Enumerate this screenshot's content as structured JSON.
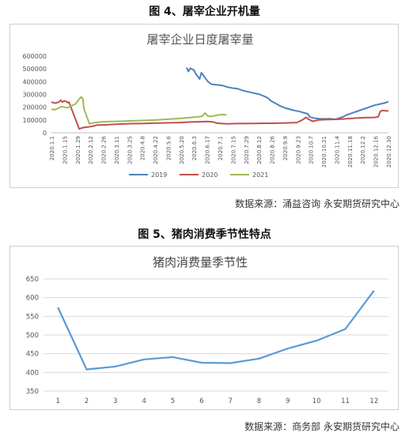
{
  "figure1": {
    "caption": "图 4、屠宰企业开机量",
    "source": "数据来源：涌益咨询  永安期货研究中心"
  },
  "figure2": {
    "caption": "图 5、猪肉消费季节性特点",
    "source": "数据来源：商务部  永安期货研究中心"
  },
  "chart_data": [
    {
      "type": "line",
      "title": "屠宰企业日度屠宰量",
      "xlabel": "",
      "ylabel": "",
      "ylim": [
        0,
        600000
      ],
      "yticks": [
        "600000",
        "500000",
        "400000",
        "300000",
        "200000",
        "100000",
        "0"
      ],
      "x_tick_labels": [
        "2020.1.1",
        "2020.1.15",
        "2020.1.29",
        "2020.2.12",
        "2020.2.26",
        "2020.3.11",
        "2020.3.25",
        "2020.4.8",
        "2020.4.22",
        "2020.5.6",
        "2020.5.20",
        "2020.6.3",
        "2020.6.17",
        "2020.7.1",
        "2020.7.15",
        "2020.7.29",
        "2020.8.12",
        "2020.8.26",
        "2020.9.9",
        "2020.9.23",
        "2020.10.7",
        "2020.10.21",
        "2020.11.4",
        "2020.11.18",
        "2020.12.2",
        "2020.12.16",
        "2020.12.30"
      ],
      "x_range": [
        1,
        365
      ],
      "x_unit": "day of year",
      "legend_position": "bottom",
      "series": [
        {
          "name": "2019",
          "color": "#4f81bd",
          "points": [
            [
              147,
              510000
            ],
            [
              149,
              480000
            ],
            [
              151,
              505000
            ],
            [
              155,
              490000
            ],
            [
              157,
              460000
            ],
            [
              161,
              420000
            ],
            [
              163,
              470000
            ],
            [
              166,
              440000
            ],
            [
              170,
              400000
            ],
            [
              174,
              380000
            ],
            [
              180,
              375000
            ],
            [
              186,
              370000
            ],
            [
              190,
              360000
            ],
            [
              196,
              350000
            ],
            [
              202,
              345000
            ],
            [
              208,
              330000
            ],
            [
              214,
              320000
            ],
            [
              220,
              310000
            ],
            [
              226,
              300000
            ],
            [
              231,
              285000
            ],
            [
              235,
              270000
            ],
            [
              238,
              250000
            ],
            [
              243,
              230000
            ],
            [
              248,
              210000
            ],
            [
              253,
              195000
            ],
            [
              258,
              185000
            ],
            [
              263,
              175000
            ],
            [
              268,
              168000
            ],
            [
              273,
              158000
            ],
            [
              278,
              148000
            ],
            [
              280,
              125000
            ],
            [
              284,
              115000
            ],
            [
              290,
              110000
            ],
            [
              296,
              108000
            ],
            [
              302,
              110000
            ],
            [
              308,
              105000
            ],
            [
              312,
              115000
            ],
            [
              316,
              125000
            ],
            [
              320,
              140000
            ],
            [
              326,
              155000
            ],
            [
              332,
              170000
            ],
            [
              338,
              185000
            ],
            [
              344,
              200000
            ],
            [
              350,
              215000
            ],
            [
              356,
              225000
            ],
            [
              362,
              235000
            ],
            [
              365,
              245000
            ]
          ]
        },
        {
          "name": "2020",
          "color": "#c0504d",
          "points": [
            [
              1,
              240000
            ],
            [
              5,
              232000
            ],
            [
              9,
              240000
            ],
            [
              11,
              255000
            ],
            [
              13,
              240000
            ],
            [
              15,
              250000
            ],
            [
              17,
              245000
            ],
            [
              19,
              235000
            ],
            [
              20,
              240000
            ],
            [
              31,
              30000
            ],
            [
              35,
              40000
            ],
            [
              40,
              45000
            ],
            [
              45,
              50000
            ],
            [
              50,
              60000
            ],
            [
              60,
              62000
            ],
            [
              70,
              66000
            ],
            [
              80,
              70000
            ],
            [
              90,
              72000
            ],
            [
              100,
              73000
            ],
            [
              110,
              75000
            ],
            [
              120,
              77000
            ],
            [
              130,
              78000
            ],
            [
              140,
              80000
            ],
            [
              150,
              84000
            ],
            [
              160,
              86000
            ],
            [
              170,
              88000
            ],
            [
              176,
              84000
            ],
            [
              180,
              75000
            ],
            [
              186,
              72000
            ],
            [
              192,
              70000
            ],
            [
              200,
              72000
            ],
            [
              210,
              73000
            ],
            [
              220,
              73000
            ],
            [
              230,
              74000
            ],
            [
              240,
              74000
            ],
            [
              250,
              76000
            ],
            [
              260,
              78000
            ],
            [
              266,
              80000
            ],
            [
              272,
              100000
            ],
            [
              276,
              120000
            ],
            [
              279,
              105000
            ],
            [
              283,
              90000
            ],
            [
              290,
              100000
            ],
            [
              300,
              103000
            ],
            [
              310,
              105000
            ],
            [
              320,
              110000
            ],
            [
              330,
              115000
            ],
            [
              340,
              118000
            ],
            [
              350,
              120000
            ],
            [
              354,
              125000
            ],
            [
              356,
              165000
            ],
            [
              358,
              175000
            ],
            [
              362,
              172000
            ],
            [
              365,
              170000
            ]
          ]
        },
        {
          "name": "2021",
          "color": "#9bbb59",
          "points": [
            [
              1,
              185000
            ],
            [
              5,
              180000
            ],
            [
              9,
              195000
            ],
            [
              12,
              205000
            ],
            [
              15,
              200000
            ],
            [
              18,
              195000
            ],
            [
              21,
              205000
            ],
            [
              24,
              215000
            ],
            [
              27,
              225000
            ],
            [
              30,
              255000
            ],
            [
              33,
              280000
            ],
            [
              35,
              265000
            ],
            [
              36,
              190000
            ],
            [
              42,
              70000
            ],
            [
              48,
              80000
            ],
            [
              55,
              85000
            ],
            [
              65,
              88000
            ],
            [
              75,
              90000
            ],
            [
              85,
              93000
            ],
            [
              95,
              95000
            ],
            [
              105,
              97000
            ],
            [
              115,
              100000
            ],
            [
              125,
              105000
            ],
            [
              135,
              110000
            ],
            [
              145,
              115000
            ],
            [
              150,
              118000
            ],
            [
              155,
              122000
            ],
            [
              160,
              125000
            ],
            [
              164,
              130000
            ],
            [
              167,
              155000
            ],
            [
              170,
              130000
            ],
            [
              174,
              128000
            ],
            [
              178,
              135000
            ],
            [
              182,
              140000
            ],
            [
              186,
              142000
            ],
            [
              190,
              140000
            ]
          ]
        }
      ]
    },
    {
      "type": "line",
      "title": "猪肉消费量季节性",
      "xlabel": "",
      "ylabel": "",
      "categories": [
        "1",
        "2",
        "3",
        "4",
        "5",
        "6",
        "7",
        "8",
        "9",
        "10",
        "11",
        "12"
      ],
      "ylim": [
        350,
        650
      ],
      "yticks": [
        "650",
        "600",
        "550",
        "500",
        "450",
        "400",
        "350"
      ],
      "legend_position": "none",
      "series": [
        {
          "color": "#5b9bd5",
          "values": [
            574,
            408,
            416,
            435,
            441,
            426,
            425,
            437,
            464,
            485,
            516,
            619
          ]
        }
      ]
    }
  ]
}
